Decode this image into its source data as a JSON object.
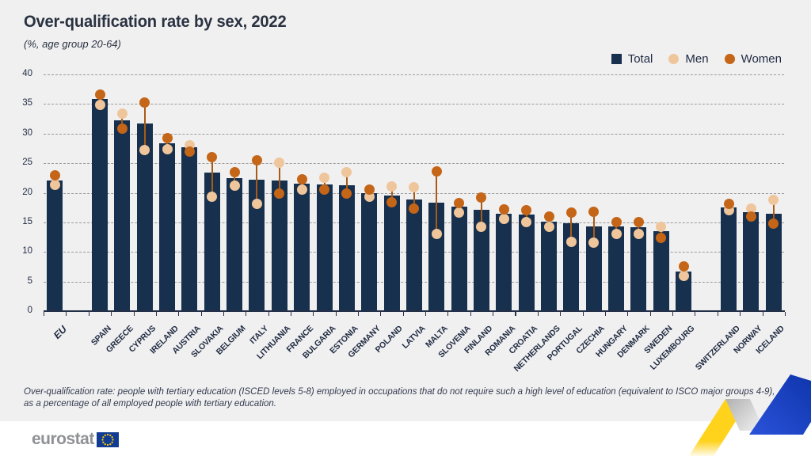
{
  "header": {
    "title": "Over-qualification rate by sex, 2022",
    "subtitle": "(%, age group 20-64)"
  },
  "legend": {
    "items": [
      {
        "label": "Total",
        "marker": "square",
        "color": "#17304e"
      },
      {
        "label": "Men",
        "marker": "circle",
        "color": "#efc69b"
      },
      {
        "label": "Women",
        "marker": "circle",
        "color": "#c46517"
      }
    ]
  },
  "chart_data": {
    "type": "bar",
    "title": "Over-qualification rate by sex, 2022",
    "subtitle": "(%, age group 20-64)",
    "ylabel": "%",
    "ylim": [
      0,
      40
    ],
    "yticks": [
      0,
      5,
      10,
      15,
      20,
      25,
      30,
      35,
      40
    ],
    "grid": "horizontal-dashed",
    "legend_position": "top-right",
    "categories": [
      "EU",
      "SPAIN",
      "GREECE",
      "CYPRUS",
      "IRELAND",
      "AUSTRIA",
      "SLOVAKIA",
      "BELGIUM",
      "ITALY",
      "LITHUANIA",
      "FRANCE",
      "BULGARIA",
      "ESTONIA",
      "GERMANY",
      "POLAND",
      "LATVIA",
      "MALTA",
      "SLOVENIA",
      "FINLAND",
      "ROMANIA",
      "CROATIA",
      "NETHERLANDS",
      "PORTUGAL",
      "CZECHIA",
      "HUNGARY",
      "DENMARK",
      "SWEDEN",
      "LUXEMBOURG",
      "SWITZERLAND",
      "NORWAY",
      "ICELAND"
    ],
    "gap_after_indices": [
      0,
      27
    ],
    "series": [
      {
        "name": "Total",
        "type": "bar",
        "color": "#17304e",
        "values": [
          22.1,
          35.9,
          32.3,
          31.7,
          28.4,
          27.7,
          23.4,
          22.5,
          22.2,
          22.1,
          21.6,
          21.4,
          21.3,
          19.9,
          19.5,
          18.8,
          18.3,
          17.6,
          17.1,
          16.5,
          16.3,
          15.1,
          14.9,
          14.3,
          14.3,
          14.2,
          13.5,
          6.7,
          17.5,
          16.7,
          16.5
        ]
      },
      {
        "name": "Men",
        "type": "dot",
        "color": "#efc69b",
        "values": [
          21.3,
          34.8,
          33.4,
          27.2,
          27.4,
          28.0,
          19.4,
          21.2,
          18.1,
          25.1,
          20.6,
          22.5,
          23.5,
          19.3,
          21.1,
          21.0,
          13.0,
          16.6,
          14.2,
          15.6,
          15.0,
          14.2,
          11.7,
          11.6,
          13.0,
          13.1,
          14.3,
          6.0,
          17.1,
          17.3,
          18.8
        ]
      },
      {
        "name": "Women",
        "type": "dot",
        "color": "#c46517",
        "values": [
          23.0,
          36.6,
          30.8,
          35.3,
          29.2,
          27.0,
          26.0,
          23.5,
          25.5,
          19.9,
          22.3,
          20.6,
          19.9,
          20.6,
          18.4,
          17.3,
          23.6,
          18.2,
          19.2,
          17.2,
          17.1,
          16.0,
          16.6,
          16.8,
          15.1,
          15.0,
          12.4,
          7.6,
          18.1,
          16.0,
          14.8
        ]
      }
    ],
    "connector_color": "#a85b17"
  },
  "footnote": {
    "line1": "Over-qualification rate: people with tertiary education (ISCED levels 5-8) employed in occupations that do not require such a high level of education (equivalent to ISCO major groups 4-9),",
    "line2": "as a percentage of all employed people with tertiary education."
  },
  "footer": {
    "logo_text": "eurostat"
  },
  "colors": {
    "background": "#f0f0f1",
    "footer_band": "#ffffff",
    "text": "#1f2a40",
    "grid": "#9b9b9b",
    "axis": "#243048",
    "flag_blue": "#123c93",
    "flag_stars": "#ffcc00",
    "ribbon_yellow": "#ffd21c",
    "ribbon_gray": "#bdbdbd",
    "ribbon_blue": "#1d43c8"
  }
}
